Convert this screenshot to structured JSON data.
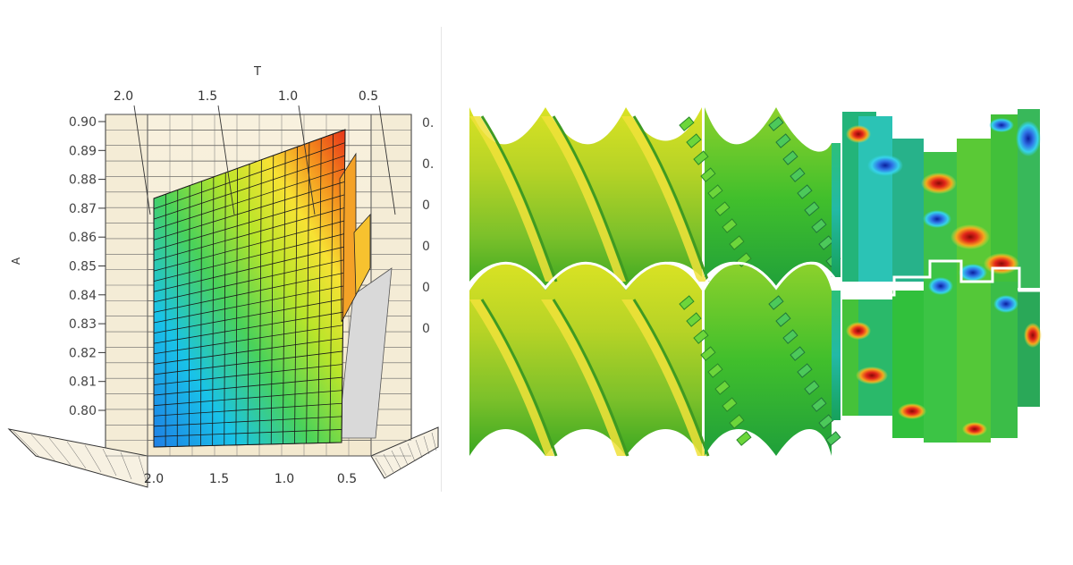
{
  "chart_data": [
    {
      "type": "surface",
      "title": "",
      "top_axis": {
        "label": "T",
        "ticks": [
          "2.0",
          "1.5",
          "1.0",
          "0.5"
        ]
      },
      "bottom_axis": {
        "label": "",
        "ticks": [
          "2.0",
          "1.5",
          "1.0",
          "0.5"
        ]
      },
      "y_axis": {
        "label": "A",
        "ticks": [
          "0.90",
          "0.89",
          "0.88",
          "0.87",
          "0.86",
          "0.85",
          "0.84",
          "0.83",
          "0.82",
          "0.81",
          "0.80"
        ],
        "ylim": [
          0.8,
          0.9
        ]
      },
      "right_ticks": [
        "0.",
        "0.",
        "0",
        "0",
        "0",
        "0"
      ],
      "colormap": [
        "#1e7fe6",
        "#19c3e8",
        "#4ad25a",
        "#b9e52a",
        "#f7e233",
        "#f48a1c",
        "#e6341a"
      ],
      "grid": true
    },
    {
      "type": "heatmap",
      "title": "",
      "description_label": "",
      "colormap": [
        "#0a1f9e",
        "#2f72e6",
        "#36d2ea",
        "#20c23c",
        "#9fe03a",
        "#f3e23a",
        "#ef7a1c",
        "#d11d12",
        "#7c0606"
      ],
      "section_labels": []
    }
  ]
}
